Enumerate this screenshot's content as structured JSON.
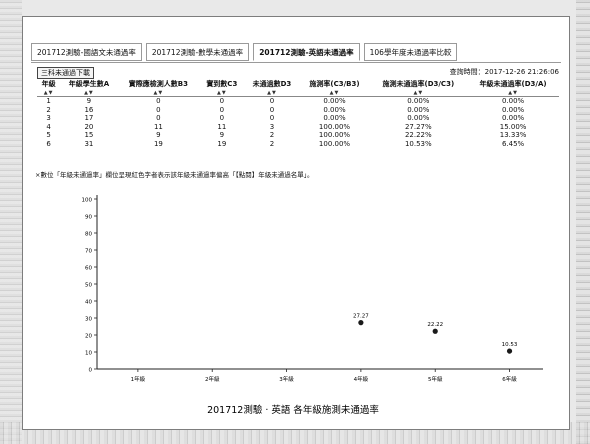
{
  "tabs": [
    {
      "label": "201712測驗-國語文未通過率",
      "active": false
    },
    {
      "label": "201712測驗-數學未通過率",
      "active": false
    },
    {
      "label": "201712測驗-英語未通過率",
      "active": true
    },
    {
      "label": "106學年度未通過率比較",
      "active": false
    }
  ],
  "toolbar": {
    "toggle_label": "三科未通過下載",
    "query_time": "查詢時間：2017-12-26 21:26:06"
  },
  "table": {
    "headers": [
      "年級",
      "年級學生數A",
      "實際應檢測人數B3",
      "實到數C3",
      "未通過數D3",
      "施測率(C3/B3)",
      "施測未通過率(D3/C3)",
      "年級未通過率(D3/A)"
    ],
    "sort_marks": [
      "▲▼",
      "▲▼",
      "▲▼",
      "▲▼",
      "▲▼",
      "▲▼",
      "▲▼",
      "▲▼"
    ],
    "rows": [
      [
        "1",
        "9",
        "0",
        "0",
        "0",
        "0.00%",
        "0.00%",
        "0.00%"
      ],
      [
        "2",
        "16",
        "0",
        "0",
        "0",
        "0.00%",
        "0.00%",
        "0.00%"
      ],
      [
        "3",
        "17",
        "0",
        "0",
        "0",
        "0.00%",
        "0.00%",
        "0.00%"
      ],
      [
        "4",
        "20",
        "11",
        "11",
        "3",
        "100.00%",
        "27.27%",
        "15.00%"
      ],
      [
        "5",
        "15",
        "9",
        "9",
        "2",
        "100.00%",
        "22.22%",
        "13.33%"
      ],
      [
        "6",
        "31",
        "19",
        "19",
        "2",
        "100.00%",
        "10.53%",
        "6.45%"
      ]
    ]
  },
  "note": "×數位「年級未通過率」欄位呈現紅色字者表示該年級未通過率偏高「【點閱】年級未通過名單」。",
  "chart_data": {
    "type": "scatter",
    "title": "201712測驗 · 英語 各年級施測未通過率",
    "categories": [
      "1年級",
      "2年級",
      "3年級",
      "4年級",
      "5年級",
      "6年級"
    ],
    "values": [
      null,
      null,
      null,
      27.27,
      22.22,
      10.53
    ],
    "data_labels": [
      "",
      "",
      "",
      "27.27",
      "22.22",
      "10.53"
    ],
    "y_ticks": [
      "0",
      "10",
      "20",
      "30",
      "40",
      "50",
      "60",
      "70",
      "80",
      "90",
      "100"
    ],
    "ylim": [
      0,
      100
    ],
    "grid": false,
    "marker_color": "#1a1a1a"
  }
}
